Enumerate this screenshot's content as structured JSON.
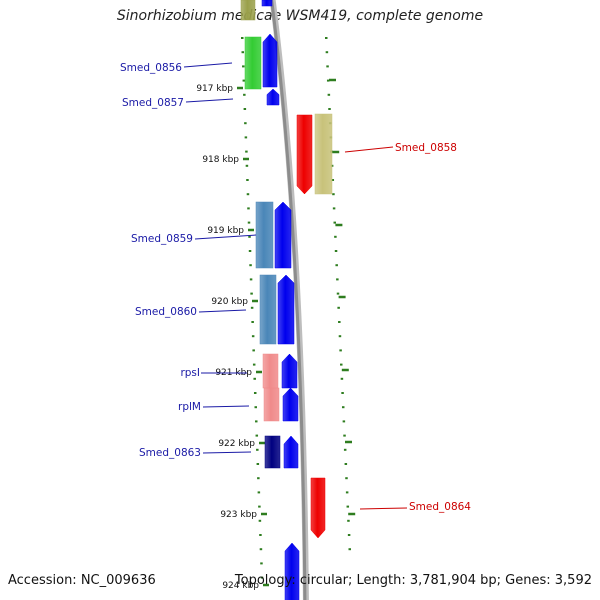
{
  "title": "Sinorhizobium medicae WSM419, complete genome",
  "footer": {
    "accession": "Accession: NC_009636",
    "summary": "Topology: circular; Length: 3,781,904 bp; Genes: 3,592"
  },
  "colors": {
    "backbone": "#8c8c8c",
    "ticks": "#2e7d1f",
    "label_blue": "#1a1aa6",
    "label_red": "#cc0000",
    "cds": "#0000ee",
    "gene_green": "#33cc33",
    "gene_khaki": "#c8c27a",
    "gene_red": "#ee0000",
    "gene_steel": "#4a86b8",
    "gene_pink": "#f08a8a",
    "gene_navy": "#000080",
    "gene_olive": "#9aa04a"
  },
  "kbp_labels": [
    "917 kbp",
    "918 kbp",
    "919 kbp",
    "920 kbp",
    "921 kbp",
    "922 kbp",
    "923 kbp",
    "924 kbp"
  ],
  "gene_labels": [
    "Smed_0856",
    "Smed_0857",
    "Smed_0858",
    "Smed_0859",
    "Smed_0860",
    "rpsI",
    "rplM",
    "Smed_0863",
    "Smed_0864"
  ]
}
